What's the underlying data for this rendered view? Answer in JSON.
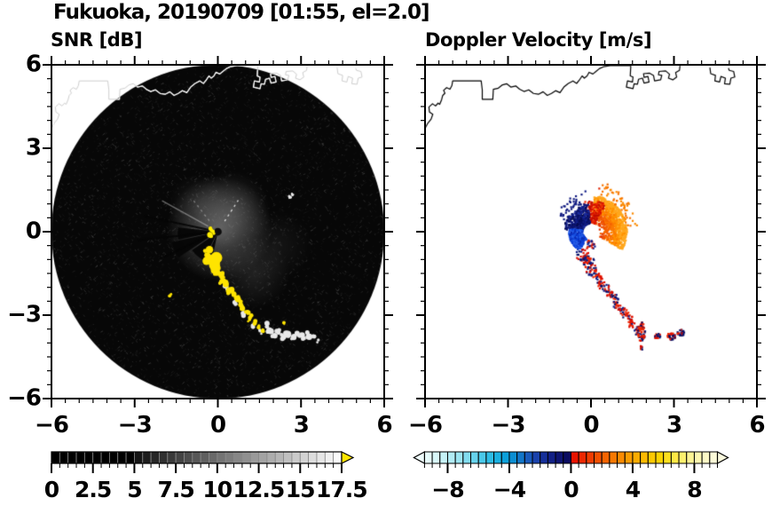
{
  "title": "Fukuoka, 20190709 [01:55, el=2.0]",
  "panels": {
    "snr": {
      "subtitle": "SNR [dB]"
    },
    "velocity": {
      "subtitle": "Doppler Velocity [m/s]"
    }
  },
  "axes": {
    "range": [
      -6,
      6
    ],
    "major_step": 3,
    "minor_step": 0.5,
    "x_tick_labels": [
      "−6",
      "−3",
      "0",
      "3",
      "6"
    ],
    "y_tick_labels": [
      "6",
      "3",
      "0",
      "−3",
      "−6"
    ]
  },
  "colorbars": {
    "snr": {
      "labels": [
        "0",
        "2.5",
        "5",
        "7.5",
        "10",
        "12.5",
        "15",
        "17.5"
      ],
      "range": [
        0,
        17.5
      ],
      "cell_step": 0.5,
      "arrow_color": "#ffe600",
      "colors": [
        "#000000",
        "#000000",
        "#000000",
        "#000000",
        "#000000",
        "#000000",
        "#000000",
        "#000000",
        "#000000",
        "#000000",
        "#141414",
        "#1d1d1d",
        "#272727",
        "#303030",
        "#3a3a3a",
        "#444444",
        "#4d4d4d",
        "#575757",
        "#606060",
        "#6a6a6a",
        "#747474",
        "#7d7d7d",
        "#878787",
        "#909090",
        "#9a9a9a",
        "#a3a3a3",
        "#adadad",
        "#b6b6b6",
        "#c0c0c0",
        "#cacaca",
        "#d3d3d3",
        "#dddddd",
        "#e6e6e6",
        "#f0f0f0",
        "#fafafa"
      ]
    },
    "velocity": {
      "labels": [
        "−8",
        "−4",
        "0",
        "4",
        "8"
      ],
      "range": [
        -9.5,
        9.5
      ],
      "cell_step": 0.5,
      "left_arrow_color": "#effdfd",
      "right_arrow_color": "#fbfade",
      "colors": [
        "#e6fbfb",
        "#d8f7f9",
        "#c6f2f7",
        "#b2ecf5",
        "#9ce5f2",
        "#82dcef",
        "#66d2ec",
        "#4ac8e9",
        "#2ebce5",
        "#1ab0e1",
        "#0ca0da",
        "#0c8ed2",
        "#1276c8",
        "#185abc",
        "#1a42ac",
        "#16309a",
        "#122086",
        "#0e1472",
        "#0a0c60",
        "#e81400",
        "#ec2800",
        "#f03c00",
        "#f35000",
        "#f56400",
        "#f77800",
        "#f98a00",
        "#fa9c00",
        "#fbac00",
        "#fcba00",
        "#fcc800",
        "#fdd400",
        "#fde01e",
        "#fee846",
        "#fef06e",
        "#fef494",
        "#fdf7b0",
        "#fdf9c6",
        "#fcfad8"
      ]
    }
  },
  "chart_data": [
    {
      "type": "heatmap",
      "title": "SNR [dB]",
      "xlim": [
        -6,
        6
      ],
      "ylim": [
        -6,
        6
      ],
      "x_ticks": [
        -6,
        -3,
        0,
        3,
        6
      ],
      "y_ticks": [
        6,
        3,
        0,
        -3,
        -6
      ],
      "colorbar": {
        "range": [
          0,
          17.5
        ],
        "tick_labels": [
          "0",
          "2.5",
          "5",
          "7.5",
          "10",
          "12.5",
          "15",
          "17.5"
        ]
      },
      "scan": {
        "disc_radius": 6,
        "background": "#070707",
        "haze": [
          {
            "x": 0.05,
            "y": 0.1,
            "r": 1.9,
            "alpha": 0.5
          },
          {
            "x": 0.5,
            "y": 0.8,
            "r": 1.4,
            "alpha": 0.22
          },
          {
            "x": 1.3,
            "y": -1.5,
            "r": 1.3,
            "alpha": 0.16
          },
          {
            "x": 2.1,
            "y": -0.5,
            "r": 1.3,
            "alpha": 0.09
          },
          {
            "x": -0.7,
            "y": 1.0,
            "r": 1.1,
            "alpha": 0.13
          }
        ],
        "wedges": [
          {
            "a0": 174,
            "a1": 191,
            "r": 1.45
          },
          {
            "a0": 193,
            "a1": 213,
            "r": 1.7
          },
          {
            "a0": 216,
            "a1": 243,
            "r": 1.15
          },
          {
            "a0": 246,
            "a1": 258,
            "r": 0.85
          }
        ],
        "spokes": [
          {
            "a": 168,
            "r": 2.7
          },
          {
            "a": 186,
            "r": 2.9
          },
          {
            "a": 205,
            "r": 2.3
          }
        ],
        "rays": [
          {
            "a": 57,
            "r0": 0.45,
            "r1": 1.35,
            "dashed": true,
            "bright": true
          },
          {
            "a": 128,
            "r0": 0.5,
            "r1": 1.5,
            "dashed": true,
            "bright": false
          },
          {
            "a": 151,
            "r0": 0.4,
            "r1": 2.3,
            "dashed": false,
            "bright": false
          }
        ],
        "center_marks": [
          [
            -0.27,
            0.07,
            0.09
          ],
          [
            -0.3,
            -0.12,
            0.1
          ],
          [
            -0.17,
            -0.03,
            0.06
          ]
        ],
        "yellow_color": "#ffe400",
        "white_color": "#e9e9e9",
        "yellow_blobs": [
          [
            -0.38,
            -0.75,
            0.15
          ],
          [
            -0.3,
            -0.9,
            0.2
          ],
          [
            -0.18,
            -1.06,
            0.22
          ],
          [
            -0.1,
            -1.22,
            0.18
          ],
          [
            -0.02,
            -1.38,
            0.15
          ],
          [
            -0.16,
            -1.46,
            0.1
          ],
          [
            0.1,
            -1.55,
            0.13
          ],
          [
            0.2,
            -1.7,
            0.12
          ],
          [
            0.12,
            -1.85,
            0.08
          ],
          [
            0.33,
            -1.88,
            0.11
          ],
          [
            0.45,
            -2.05,
            0.11
          ],
          [
            0.38,
            -2.18,
            0.07
          ],
          [
            0.56,
            -2.25,
            0.1
          ],
          [
            0.68,
            -2.42,
            0.1
          ],
          [
            0.8,
            -2.58,
            0.09
          ],
          [
            0.92,
            -2.74,
            0.1
          ],
          [
            1.05,
            -2.9,
            0.09
          ],
          [
            1.18,
            -3.05,
            0.09
          ],
          [
            1.12,
            -3.18,
            0.06
          ],
          [
            1.35,
            -3.26,
            0.08
          ],
          [
            1.5,
            -3.42,
            0.08
          ],
          [
            1.6,
            -3.54,
            0.07
          ],
          [
            2.4,
            -3.3,
            0.06
          ],
          [
            -1.72,
            -2.28,
            0.07
          ]
        ],
        "white_blobs": [
          [
            0.3,
            -2.0,
            0.09
          ],
          [
            0.62,
            -2.55,
            0.08
          ],
          [
            0.95,
            -3.0,
            0.09
          ],
          [
            1.26,
            -3.36,
            0.08
          ],
          [
            1.56,
            -3.6,
            0.09
          ],
          [
            1.72,
            -3.36,
            0.1
          ],
          [
            1.86,
            -3.55,
            0.12
          ],
          [
            2.02,
            -3.7,
            0.11
          ],
          [
            2.18,
            -3.62,
            0.1
          ],
          [
            2.33,
            -3.77,
            0.11
          ],
          [
            2.52,
            -3.65,
            0.13
          ],
          [
            2.72,
            -3.8,
            0.11
          ],
          [
            2.9,
            -3.66,
            0.1
          ],
          [
            3.08,
            -3.82,
            0.13
          ],
          [
            3.28,
            -3.7,
            0.12
          ],
          [
            3.46,
            -3.8,
            0.09
          ],
          [
            3.6,
            -3.94,
            0.06
          ],
          [
            2.6,
            1.25,
            0.06
          ],
          [
            2.7,
            1.35,
            0.05
          ]
        ]
      }
    },
    {
      "type": "scatter",
      "title": "Doppler Velocity [m/s]",
      "xlim": [
        -6,
        6
      ],
      "ylim": [
        -6,
        6
      ],
      "colorbar": {
        "range": [
          -9.5,
          9.5
        ],
        "tick_labels": [
          "−8",
          "−4",
          "0",
          "4",
          "8"
        ]
      },
      "hole_radius": 0.26,
      "clusters": [
        {
          "name": "orange-fan",
          "a0": -30,
          "a1": 85,
          "r0": 0.3,
          "r1": 1.3,
          "n": 900,
          "grade": true,
          "colors": [
            "#e03000",
            "#ee4c00",
            "#f66400",
            "#fb7a00",
            "#ff9200",
            "#ffa81e"
          ]
        },
        {
          "name": "orange-outliers",
          "a0": 5,
          "a1": 78,
          "r0": 1.3,
          "r1": 1.75,
          "n": 55,
          "colors": [
            "#f87400",
            "#fb8a00"
          ]
        },
        {
          "name": "red-north",
          "a0": 62,
          "a1": 104,
          "r0": 0.32,
          "r1": 1.12,
          "n": 170,
          "colors": [
            "#da1200",
            "#ee2a00",
            "#c00e00"
          ]
        },
        {
          "name": "navy-cluster",
          "a0": 96,
          "a1": 176,
          "r0": 0.28,
          "r1": 0.98,
          "n": 430,
          "colors": [
            "#0a1268",
            "#111c84",
            "#1a2a9c",
            "#060c54"
          ]
        },
        {
          "name": "navy-outliers",
          "a0": 102,
          "a1": 158,
          "r0": 0.98,
          "r1": 1.42,
          "n": 38,
          "colors": [
            "#101a80"
          ]
        },
        {
          "name": "blue-cluster",
          "a0": 172,
          "a1": 240,
          "r0": 0.3,
          "r1": 0.8,
          "n": 320,
          "colors": [
            "#0b3fd8",
            "#1650e2",
            "#2a62ea",
            "#0a2cb8"
          ]
        },
        {
          "name": "south-specks",
          "a0": 252,
          "a1": 288,
          "r0": 0.32,
          "r1": 0.62,
          "n": 22,
          "colors": [
            "#101c88",
            "#da1600"
          ]
        }
      ],
      "streak": {
        "x0": -0.36,
        "y0": -0.8,
        "x1": 1.62,
        "y1": -3.55,
        "blobs": 15,
        "r": 0.13,
        "navy_frac": 0.45,
        "red": [
          "#dc0c00",
          "#ee2400"
        ],
        "navy": [
          "#0a1268",
          "#131f86"
        ]
      },
      "bottom_blobs": [
        {
          "x": 1.83,
          "y": -3.62,
          "rx": 0.13,
          "ry": 0.36,
          "n": 55
        },
        {
          "x": 1.82,
          "y": -4.18,
          "rx": 0.07,
          "ry": 0.08,
          "n": 8
        },
        {
          "x": 2.4,
          "y": -3.76,
          "rx": 0.12,
          "ry": 0.1,
          "n": 16
        },
        {
          "x": 2.9,
          "y": -3.78,
          "rx": 0.17,
          "ry": 0.15,
          "n": 34
        },
        {
          "x": 3.26,
          "y": -3.62,
          "rx": 0.14,
          "ry": 0.12,
          "n": 26
        }
      ],
      "specks": [
        [
          0.3,
          1.55,
          "#e02000"
        ],
        [
          0.6,
          1.7,
          "#f06a00"
        ],
        [
          -0.2,
          1.45,
          "#101c88"
        ],
        [
          1.3,
          1.0,
          "#f07000"
        ]
      ]
    }
  ],
  "coastline": {
    "main": [
      [
        -6.0,
        3.72
      ],
      [
        -5.9,
        3.9
      ],
      [
        -5.78,
        4.05
      ],
      [
        -5.72,
        4.22
      ],
      [
        -5.84,
        4.3
      ],
      [
        -5.86,
        4.48
      ],
      [
        -5.73,
        4.6
      ],
      [
        -5.62,
        4.52
      ],
      [
        -5.53,
        4.62
      ],
      [
        -5.47,
        4.58
      ],
      [
        -5.4,
        4.75
      ],
      [
        -5.36,
        4.9
      ],
      [
        -5.28,
        4.98
      ],
      [
        -5.33,
        5.08
      ],
      [
        -5.22,
        5.18
      ],
      [
        -5.1,
        5.12
      ],
      [
        -5.03,
        5.25
      ],
      [
        -5.0,
        5.42
      ],
      [
        -3.97,
        5.42
      ],
      [
        -3.93,
        5.1
      ],
      [
        -3.93,
        4.76
      ],
      [
        -3.55,
        4.76
      ],
      [
        -3.53,
        5.12
      ],
      [
        -3.35,
        5.16
      ],
      [
        -3.2,
        5.28
      ],
      [
        -3.05,
        5.32
      ],
      [
        -2.9,
        5.2
      ],
      [
        -2.72,
        5.24
      ],
      [
        -2.58,
        5.12
      ],
      [
        -2.42,
        5.04
      ],
      [
        -2.25,
        5.1
      ],
      [
        -2.08,
        4.97
      ],
      [
        -1.9,
        4.94
      ],
      [
        -1.73,
        5.03
      ],
      [
        -1.58,
        4.9
      ],
      [
        -1.43,
        4.97
      ],
      [
        -1.28,
        5.07
      ],
      [
        -1.12,
        5.0
      ],
      [
        -0.98,
        5.2
      ],
      [
        -0.82,
        5.33
      ],
      [
        -0.65,
        5.42
      ],
      [
        -0.52,
        5.33
      ],
      [
        -0.42,
        5.45
      ],
      [
        -0.32,
        5.6
      ],
      [
        -0.24,
        5.52
      ],
      [
        -0.14,
        5.6
      ],
      [
        -0.07,
        5.73
      ],
      [
        0.07,
        5.67
      ],
      [
        0.18,
        5.76
      ],
      [
        0.3,
        5.86
      ],
      [
        0.45,
        5.93
      ],
      [
        0.7,
        5.97
      ],
      [
        1.44,
        5.97
      ]
    ],
    "port": [
      [
        1.44,
        5.97
      ],
      [
        1.42,
        5.6
      ],
      [
        1.52,
        5.56
      ],
      [
        1.5,
        5.38
      ],
      [
        1.32,
        5.42
      ],
      [
        1.28,
        5.2
      ],
      [
        1.52,
        5.14
      ],
      [
        1.56,
        5.32
      ],
      [
        1.68,
        5.3
      ],
      [
        1.72,
        5.48
      ],
      [
        1.86,
        5.52
      ],
      [
        1.92,
        5.34
      ],
      [
        2.1,
        5.38
      ],
      [
        2.06,
        5.58
      ],
      [
        1.92,
        5.55
      ],
      [
        1.9,
        5.68
      ],
      [
        2.12,
        5.7
      ],
      [
        2.26,
        5.62
      ],
      [
        2.3,
        5.42
      ],
      [
        2.52,
        5.46
      ],
      [
        2.56,
        5.62
      ],
      [
        2.44,
        5.64
      ],
      [
        2.46,
        5.76
      ],
      [
        2.7,
        5.78
      ],
      [
        2.84,
        5.66
      ],
      [
        2.8,
        5.52
      ],
      [
        2.96,
        5.46
      ],
      [
        3.1,
        5.56
      ],
      [
        3.06,
        5.72
      ],
      [
        3.2,
        5.8
      ],
      [
        3.22,
        5.97
      ]
    ],
    "east": [
      [
        4.3,
        5.9
      ],
      [
        4.33,
        5.68
      ],
      [
        4.5,
        5.62
      ],
      [
        4.48,
        5.42
      ],
      [
        4.65,
        5.38
      ],
      [
        4.7,
        5.58
      ],
      [
        4.86,
        5.52
      ],
      [
        4.83,
        5.32
      ],
      [
        5.02,
        5.3
      ],
      [
        5.06,
        5.52
      ],
      [
        5.2,
        5.56
      ],
      [
        5.16,
        5.76
      ],
      [
        5.0,
        5.8
      ],
      [
        4.97,
        5.88
      ]
    ]
  }
}
